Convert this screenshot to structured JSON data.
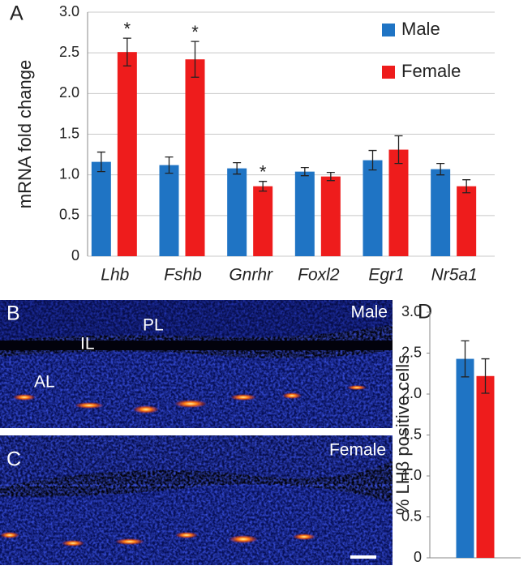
{
  "panels": {
    "a": "A",
    "b": "B",
    "c": "C",
    "d": "D"
  },
  "micrographs": {
    "male": "Male",
    "female": "Female",
    "pl": "PL",
    "il": "IL",
    "al": "AL"
  },
  "chart_data": [
    {
      "type": "bar",
      "ylabel": "mRNA fold change",
      "categories": [
        "Lhb",
        "Fshb",
        "Gnrhr",
        "Foxl2",
        "Egr1",
        "Nr5a1"
      ],
      "series": [
        {
          "name": "Male",
          "color": "#1f74c4",
          "values": [
            1.16,
            1.12,
            1.08,
            1.04,
            1.18,
            1.07
          ],
          "errors": [
            0.12,
            0.1,
            0.07,
            0.05,
            0.12,
            0.07
          ]
        },
        {
          "name": "Female",
          "color": "#ee1c1c",
          "values": [
            2.51,
            2.42,
            0.86,
            0.98,
            1.31,
            0.86
          ],
          "errors": [
            0.17,
            0.22,
            0.06,
            0.05,
            0.17,
            0.08
          ],
          "significance": [
            "*",
            "*",
            "*",
            null,
            null,
            null
          ]
        }
      ],
      "ylim": [
        0,
        3
      ],
      "yticks": [
        0,
        0.5,
        {
          "value": 1,
          "label": "1.0"
        },
        1.5,
        {
          "value": 2,
          "label": "2.0"
        },
        2.5,
        {
          "value": 3,
          "label": "3.0"
        }
      ],
      "grid": true,
      "legend": "top-right"
    },
    {
      "type": "bar",
      "ylabel": "% LHβ positive cells",
      "series": [
        {
          "color": "#1f74c4",
          "values": [
            2.43
          ],
          "errors": [
            0.22
          ]
        },
        {
          "color": "#ee1c1c",
          "values": [
            2.22
          ],
          "errors": [
            0.21
          ]
        }
      ],
      "ylim": [
        0,
        3
      ],
      "yticks": [
        0,
        0.5,
        {
          "value": 1,
          "label": "1.0"
        },
        1.5,
        {
          "value": 2,
          "label": "2.0"
        },
        2.5,
        {
          "value": 3,
          "label": "3.0"
        }
      ],
      "grid": false
    }
  ]
}
